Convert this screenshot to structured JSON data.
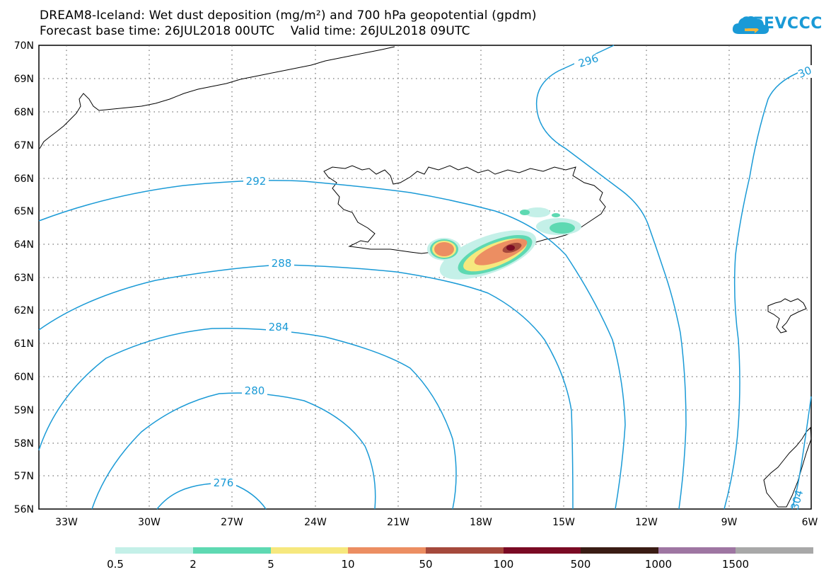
{
  "header": {
    "title_line1": "DREAM8-Iceland: Wet dust deposition (mg/m²) and 700 hPa geopotential (gpdm)",
    "title_line2": "Forecast base time: 26JUL2018 00UTC    Valid time: 26JUL2018 09UTC",
    "logo_text": "SEEVCCC",
    "logo_icon": "cloud-icon"
  },
  "map": {
    "lat_labels": [
      "70N",
      "69N",
      "68N",
      "67N",
      "66N",
      "65N",
      "64N",
      "63N",
      "62N",
      "61N",
      "60N",
      "59N",
      "58N",
      "57N",
      "56N"
    ],
    "lon_labels": [
      "33W",
      "30W",
      "27W",
      "24W",
      "21W",
      "18W",
      "15W",
      "12W",
      "9W",
      "6W"
    ],
    "contour_color": "#1a9ad6",
    "contour_labels": [
      "296",
      "30",
      "292",
      "288",
      "284",
      "280",
      "276",
      "304"
    ],
    "grid": "dotted"
  },
  "legend": {
    "labels": [
      "0.5",
      "2",
      "5",
      "10",
      "50",
      "100",
      "500",
      "1000",
      "1500"
    ],
    "colors": [
      "#c4f0e8",
      "#5ed9b2",
      "#f6e87e",
      "#ec8e62",
      "#a5493c",
      "#7a0a24",
      "#3a1c14",
      "#9e76a2",
      "#a8a8a8"
    ]
  }
}
